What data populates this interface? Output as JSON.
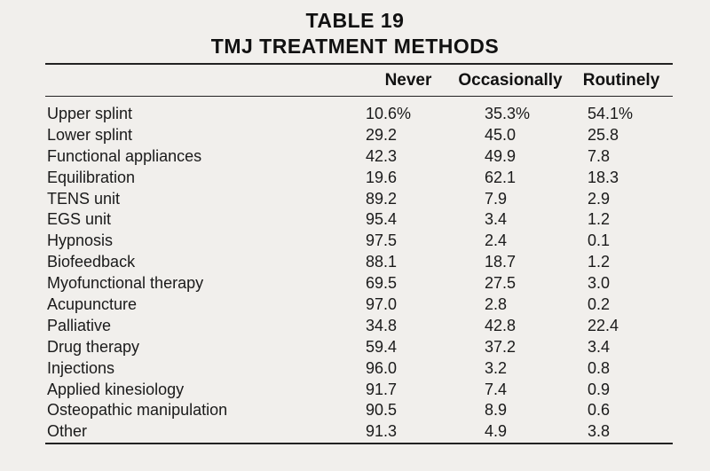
{
  "title_line1": "TABLE 19",
  "title_line2": "TMJ TREATMENT METHODS",
  "columns": [
    "Never",
    "Occasionally",
    "Routinely"
  ],
  "rows": [
    {
      "label": "Upper splint",
      "never": "10.6%",
      "occasionally": "35.3%",
      "routinely": "54.1%"
    },
    {
      "label": "Lower splint",
      "never": "29.2",
      "occasionally": "45.0",
      "routinely": "25.8"
    },
    {
      "label": "Functional appliances",
      "never": "42.3",
      "occasionally": "49.9",
      "routinely": "7.8"
    },
    {
      "label": "Equilibration",
      "never": "19.6",
      "occasionally": "62.1",
      "routinely": "18.3"
    },
    {
      "label": "TENS unit",
      "never": "89.2",
      "occasionally": "7.9",
      "routinely": "2.9"
    },
    {
      "label": "EGS unit",
      "never": "95.4",
      "occasionally": "3.4",
      "routinely": "1.2"
    },
    {
      "label": "Hypnosis",
      "never": "97.5",
      "occasionally": "2.4",
      "routinely": "0.1"
    },
    {
      "label": "Biofeedback",
      "never": "88.1",
      "occasionally": "18.7",
      "routinely": "1.2"
    },
    {
      "label": "Myofunctional therapy",
      "never": "69.5",
      "occasionally": "27.5",
      "routinely": "3.0"
    },
    {
      "label": "Acupuncture",
      "never": "97.0",
      "occasionally": "2.8",
      "routinely": "0.2"
    },
    {
      "label": "Palliative",
      "never": "34.8",
      "occasionally": "42.8",
      "routinely": "22.4"
    },
    {
      "label": "Drug therapy",
      "never": "59.4",
      "occasionally": "37.2",
      "routinely": "3.4"
    },
    {
      "label": "Injections",
      "never": "96.0",
      "occasionally": "3.2",
      "routinely": "0.8"
    },
    {
      "label": "Applied kinesiology",
      "never": "91.7",
      "occasionally": "7.4",
      "routinely": "0.9"
    },
    {
      "label": "Osteopathic manipulation",
      "never": "90.5",
      "occasionally": "8.9",
      "routinely": "0.6"
    },
    {
      "label": "Other",
      "never": "91.3",
      "occasionally": "4.9",
      "routinely": "3.8"
    }
  ]
}
